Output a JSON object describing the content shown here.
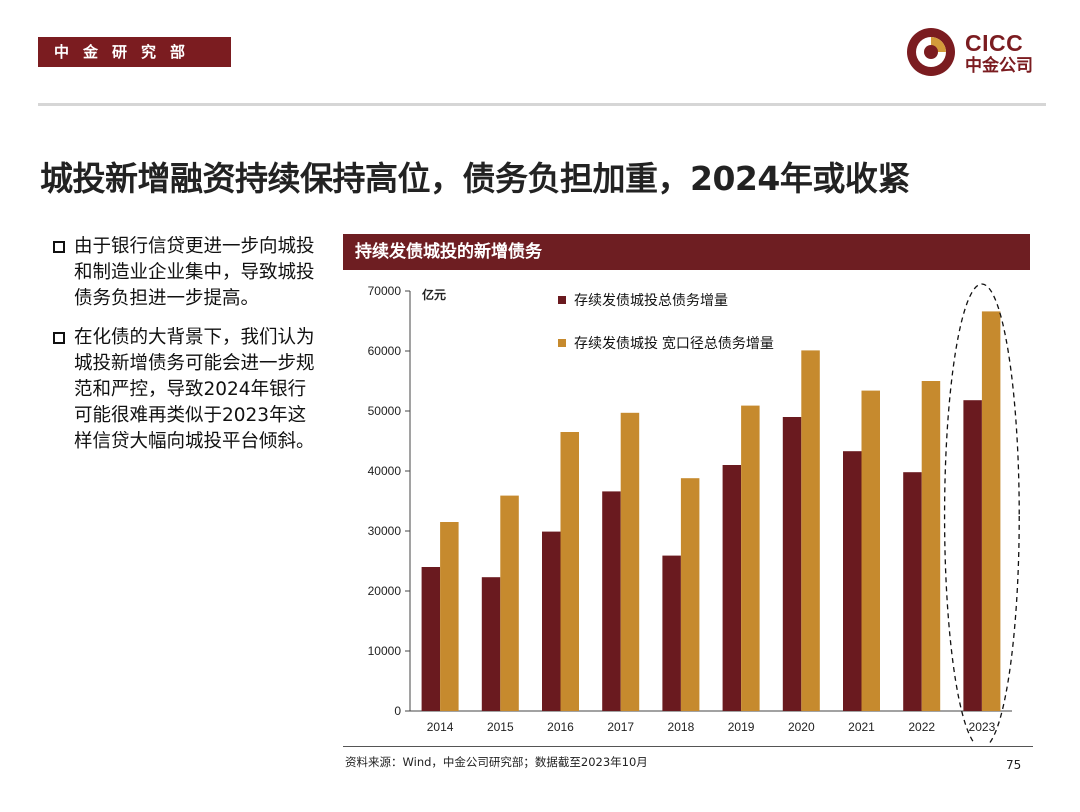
{
  "header": {
    "dept": "中金研究部",
    "logo_en": "CICC",
    "logo_cn": "中金公司"
  },
  "page_title": "城投新增融资持续保持高位，债务负担加重，2024年或收紧",
  "bullets": [
    "由于银行信贷更进一步向城投和制造业企业集中，导致城投债务负担进一步提高。",
    "在化债的大背景下，我们认为城投新增债务可能会进一步规范和严控，导致2024年银行可能很难再类似于2023年这样信贷大幅向城投平台倾斜。"
  ],
  "chart_title": "持续发债城投的新增债务",
  "colors": {
    "brand": "#7b1c20",
    "series1": "#6a1a1f",
    "series2": "#c68a2e"
  },
  "chart_data": {
    "type": "bar",
    "title": "持续发债城投的新增债务",
    "ylabel": "亿元",
    "xlabel": "",
    "ylim": [
      0,
      70000
    ],
    "yticks": [
      0,
      10000,
      20000,
      30000,
      40000,
      50000,
      60000,
      70000
    ],
    "categories": [
      "2014",
      "2015",
      "2016",
      "2017",
      "2018",
      "2019",
      "2020",
      "2021",
      "2022",
      "2023"
    ],
    "series": [
      {
        "name": "存续发债城投总债务增量",
        "values": [
          24000,
          22300,
          29900,
          36600,
          25900,
          41000,
          49000,
          43300,
          39800,
          51800
        ]
      },
      {
        "name": "存续发债城投 宽口径总债务增量",
        "values": [
          31500,
          35900,
          46500,
          49700,
          38800,
          50900,
          60100,
          53400,
          55000,
          66600
        ]
      }
    ],
    "legend_position": "top-left",
    "grid": false,
    "highlight_category": "2023"
  },
  "source_note": "资料来源：Wind，中金公司研究部；数据截至2023年10月",
  "page_number": "75"
}
